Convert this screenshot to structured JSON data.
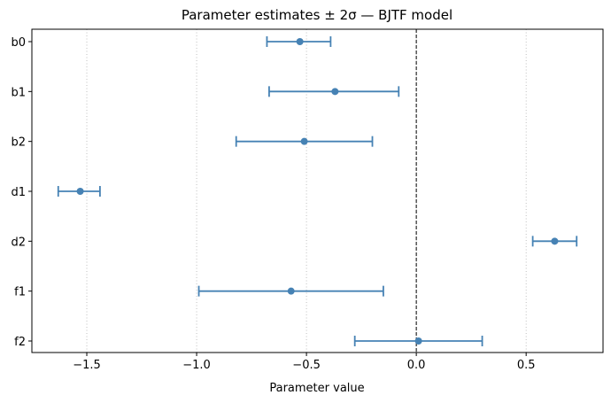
{
  "chart_data": {
    "type": "errorbar",
    "title": "Parameter estimates ± 2σ  —  BJTF model",
    "xlabel": "Parameter value",
    "ylabel": "",
    "categories": [
      "b0",
      "b1",
      "b2",
      "d1",
      "d2",
      "f1",
      "f2"
    ],
    "estimates": [
      -0.53,
      -0.37,
      -0.51,
      -1.53,
      0.63,
      -0.57,
      0.01
    ],
    "lower": [
      -0.68,
      -0.67,
      -0.82,
      -1.63,
      0.53,
      -0.99,
      -0.28
    ],
    "upper": [
      -0.39,
      -0.08,
      -0.2,
      -1.44,
      0.73,
      -0.15,
      0.3
    ],
    "xlim": [
      -1.75,
      0.85
    ],
    "xticks": [
      -1.5,
      -1.0,
      -0.5,
      0.0,
      0.5
    ],
    "xtick_labels": [
      "−1.5",
      "−1.0",
      "−0.5",
      "0.0",
      "0.5"
    ],
    "reference_line": 0.0,
    "grid": "x dotted",
    "color": "#4682b4"
  }
}
